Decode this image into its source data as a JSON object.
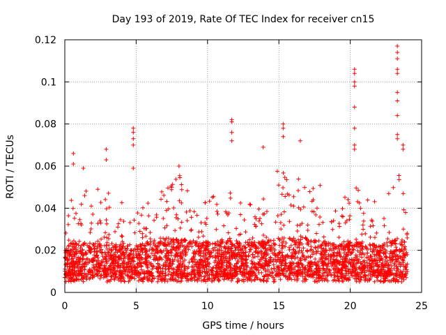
{
  "chart_data": {
    "type": "scatter",
    "title": "Day 193 of 2019, Rate Of TEC Index for receiver cn15",
    "xlabel": "GPS time / hours",
    "ylabel": "ROTI / TECUs",
    "xlim": [
      0,
      25
    ],
    "ylim": [
      0,
      0.12
    ],
    "x_ticks": [
      "0",
      "5",
      "10",
      "15",
      "20",
      "25"
    ],
    "y_ticks": [
      "0",
      "0.02",
      "0.04",
      "0.06",
      "0.08",
      "0.1",
      "0.12"
    ],
    "grid": true,
    "marker": "+",
    "colors": {
      "series": "#ff0000",
      "grid": "#a0a0a0",
      "axis": "#000000"
    },
    "series": [
      {
        "name": "ROTI (cn15)",
        "distribution_note": "dense band 0.005-0.03 TECU over 0-24 h",
        "peaks": [
          {
            "x": 0.6,
            "y": 0.066
          },
          {
            "x": 0.6,
            "y": 0.061
          },
          {
            "x": 1.3,
            "y": 0.059
          },
          {
            "x": 2.9,
            "y": 0.068
          },
          {
            "x": 2.9,
            "y": 0.063
          },
          {
            "x": 4.8,
            "y": 0.078
          },
          {
            "x": 4.8,
            "y": 0.076
          },
          {
            "x": 4.8,
            "y": 0.073
          },
          {
            "x": 4.8,
            "y": 0.07
          },
          {
            "x": 4.8,
            "y": 0.059
          },
          {
            "x": 8.0,
            "y": 0.06
          },
          {
            "x": 11.7,
            "y": 0.082
          },
          {
            "x": 11.7,
            "y": 0.081
          },
          {
            "x": 11.7,
            "y": 0.076
          },
          {
            "x": 11.7,
            "y": 0.072
          },
          {
            "x": 13.9,
            "y": 0.069
          },
          {
            "x": 15.3,
            "y": 0.08
          },
          {
            "x": 15.3,
            "y": 0.078
          },
          {
            "x": 15.3,
            "y": 0.074
          },
          {
            "x": 16.5,
            "y": 0.072
          },
          {
            "x": 20.3,
            "y": 0.106
          },
          {
            "x": 20.3,
            "y": 0.104
          },
          {
            "x": 20.3,
            "y": 0.1
          },
          {
            "x": 20.3,
            "y": 0.098
          },
          {
            "x": 20.3,
            "y": 0.088
          },
          {
            "x": 20.3,
            "y": 0.078
          },
          {
            "x": 20.3,
            "y": 0.07
          },
          {
            "x": 20.3,
            "y": 0.068
          },
          {
            "x": 23.3,
            "y": 0.117
          },
          {
            "x": 23.3,
            "y": 0.114
          },
          {
            "x": 23.3,
            "y": 0.111
          },
          {
            "x": 23.3,
            "y": 0.106
          },
          {
            "x": 23.3,
            "y": 0.104
          },
          {
            "x": 23.3,
            "y": 0.095
          },
          {
            "x": 23.3,
            "y": 0.091
          },
          {
            "x": 23.3,
            "y": 0.084
          },
          {
            "x": 23.3,
            "y": 0.075
          },
          {
            "x": 23.3,
            "y": 0.073
          },
          {
            "x": 23.7,
            "y": 0.07
          },
          {
            "x": 23.7,
            "y": 0.068
          }
        ],
        "background_profile": [
          [
            0.0,
            0.014,
            0.036
          ],
          [
            0.5,
            0.016,
            0.045
          ],
          [
            1.0,
            0.015,
            0.048
          ],
          [
            1.5,
            0.016,
            0.05
          ],
          [
            2.0,
            0.015,
            0.046
          ],
          [
            2.5,
            0.016,
            0.052
          ],
          [
            3.0,
            0.015,
            0.05
          ],
          [
            3.5,
            0.014,
            0.044
          ],
          [
            4.0,
            0.015,
            0.045
          ],
          [
            4.5,
            0.015,
            0.044
          ],
          [
            5.0,
            0.015,
            0.04
          ],
          [
            5.5,
            0.016,
            0.042
          ],
          [
            6.0,
            0.017,
            0.046
          ],
          [
            6.5,
            0.018,
            0.05
          ],
          [
            7.0,
            0.018,
            0.052
          ],
          [
            7.5,
            0.018,
            0.054
          ],
          [
            8.0,
            0.018,
            0.057
          ],
          [
            8.5,
            0.017,
            0.05
          ],
          [
            9.0,
            0.017,
            0.048
          ],
          [
            9.5,
            0.016,
            0.05
          ],
          [
            10.0,
            0.016,
            0.047
          ],
          [
            10.5,
            0.016,
            0.052
          ],
          [
            11.0,
            0.017,
            0.054
          ],
          [
            11.5,
            0.017,
            0.055
          ],
          [
            12.0,
            0.016,
            0.05
          ],
          [
            12.5,
            0.016,
            0.048
          ],
          [
            13.0,
            0.016,
            0.047
          ],
          [
            13.5,
            0.016,
            0.047
          ],
          [
            14.0,
            0.017,
            0.05
          ],
          [
            14.5,
            0.017,
            0.055
          ],
          [
            15.0,
            0.018,
            0.06
          ],
          [
            15.5,
            0.018,
            0.058
          ],
          [
            16.0,
            0.018,
            0.058
          ],
          [
            16.5,
            0.019,
            0.06
          ],
          [
            17.0,
            0.018,
            0.055
          ],
          [
            17.5,
            0.017,
            0.05
          ],
          [
            18.0,
            0.017,
            0.053
          ],
          [
            18.5,
            0.016,
            0.05
          ],
          [
            19.0,
            0.015,
            0.045
          ],
          [
            19.5,
            0.015,
            0.046
          ],
          [
            20.0,
            0.016,
            0.055
          ],
          [
            20.5,
            0.016,
            0.05
          ],
          [
            21.0,
            0.015,
            0.046
          ],
          [
            21.5,
            0.015,
            0.045
          ],
          [
            22.0,
            0.015,
            0.045
          ],
          [
            22.5,
            0.016,
            0.046
          ],
          [
            23.0,
            0.017,
            0.05
          ],
          [
            23.5,
            0.018,
            0.06
          ],
          [
            24.0,
            0.016,
            0.035
          ]
        ]
      }
    ]
  }
}
